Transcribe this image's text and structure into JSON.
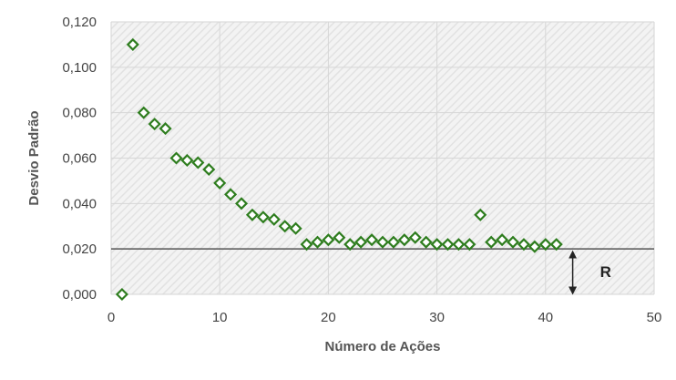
{
  "chart_data": {
    "type": "scatter",
    "xlabel": "Número de Ações",
    "ylabel": "Desvio Padrão",
    "xlim": [
      0,
      50
    ],
    "ylim": [
      0,
      0.12
    ],
    "x_ticks": [
      0,
      10,
      20,
      30,
      40,
      50
    ],
    "x_tick_labels": [
      "0",
      "10",
      "20",
      "30",
      "40",
      "50"
    ],
    "y_ticks": [
      0,
      0.02,
      0.04,
      0.06,
      0.08,
      0.1,
      0.12
    ],
    "y_tick_labels": [
      "0,000",
      "0,020",
      "0,040",
      "0,060",
      "0,080",
      "0,100",
      "0,120"
    ],
    "grid": true,
    "series": [
      {
        "marker": "diamond-open",
        "color": "#2e7d1e",
        "x": [
          1,
          2,
          3,
          4,
          5,
          6,
          7,
          8,
          9,
          10,
          11,
          12,
          13,
          14,
          15,
          16,
          17,
          18,
          19,
          20,
          21,
          22,
          23,
          24,
          25,
          26,
          27,
          28,
          29,
          30,
          31,
          32,
          33,
          34,
          35,
          36,
          37,
          38,
          39,
          40,
          41
        ],
        "y": [
          0.0,
          0.11,
          0.08,
          0.075,
          0.073,
          0.06,
          0.059,
          0.058,
          0.055,
          0.049,
          0.044,
          0.04,
          0.035,
          0.034,
          0.033,
          0.03,
          0.029,
          0.022,
          0.023,
          0.024,
          0.025,
          0.022,
          0.023,
          0.024,
          0.023,
          0.023,
          0.024,
          0.025,
          0.023,
          0.022,
          0.022,
          0.022,
          0.022,
          0.035,
          0.023,
          0.024,
          0.023,
          0.022,
          0.021,
          0.022,
          0.022
        ]
      }
    ],
    "reference_line": {
      "y": 0.02,
      "color": "#555555"
    },
    "annotations": [
      {
        "text": "R",
        "arrow": "double-vertical",
        "from_y": 0.0,
        "to_y": 0.02,
        "x": 42.5
      }
    ]
  }
}
